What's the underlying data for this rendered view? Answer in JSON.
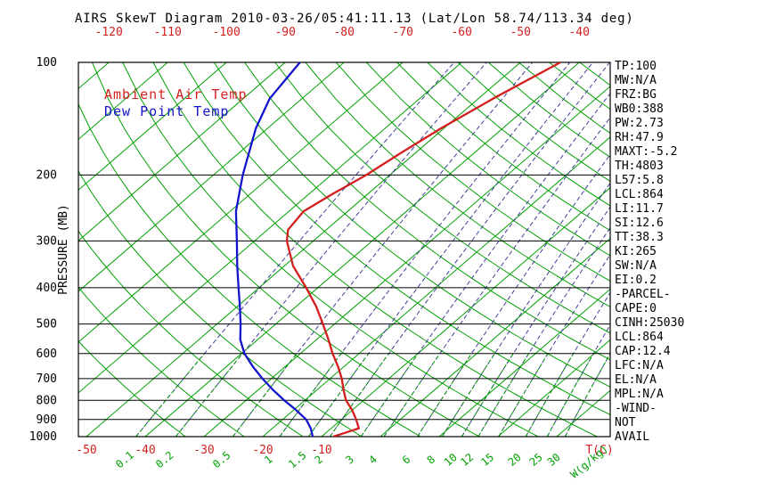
{
  "title": "AIRS SkewT Diagram 2010-03-26/05:41:11.13 (Lat/Lon 58.74/113.34 deg)",
  "legend": {
    "temperature_label": "Ambient Air Temp",
    "dewpoint_label": "Dew Point Temp"
  },
  "axes": {
    "pressure_axis_title": "PRESSURE (MB)",
    "pressure_ticks": [
      100,
      200,
      300,
      400,
      500,
      600,
      700,
      800,
      900,
      1000
    ],
    "top_temp_ticks": [
      -120,
      -110,
      -100,
      -90,
      -80,
      -70,
      -60,
      -50,
      -40
    ],
    "bottom_temp_ticks": [
      -50,
      -40,
      -30,
      -20,
      -10
    ],
    "temp_unit_label": "T(C)",
    "mixing_ratio_ticks": [
      0.1,
      0.2,
      0.5,
      1,
      1.5,
      2,
      3,
      4,
      6,
      8,
      10,
      12,
      15,
      20,
      25,
      30
    ],
    "mixing_ratio_unit_label": "W(g/kg)"
  },
  "stats": [
    "TP:100",
    "MW:N/A",
    "FRZ:BG",
    "WB0:388",
    "PW:2.73",
    "RH:47.9",
    "MAXT:-5.2",
    "TH:4803",
    "L57:5.8",
    "LCL:864",
    "LI:11.7",
    "SI:12.6",
    "TT:38.3",
    "KI:265",
    "SW:N/A",
    "EI:0.2",
    "-PARCEL-",
    "CAPE:0",
    "CINH:25030",
    "LCL:864",
    "CAP:12.4",
    "LFC:N/A",
    "EL:N/A",
    "MPL:N/A",
    "-WIND-",
    "NOT",
    "AVAIL"
  ],
  "colors": {
    "grid_green": "#00a000",
    "grid_navy": "#404098",
    "temp_red": "#d41f1f",
    "dewpoint_blue": "#1414cc",
    "axis_black": "#000000"
  },
  "chart_data": {
    "type": "line",
    "title": "AIRS SkewT Diagram 2010-03-26/05:41:11.13 (Lat/Lon 58.74/113.34 deg)",
    "xlabel": "T(C)",
    "ylabel": "PRESSURE (MB)",
    "x_range": [
      -120,
      40
    ],
    "y_range": [
      100,
      1000
    ],
    "y_scale": "log",
    "projection": "skew-t-log-p",
    "grid": "isotherms, dry adiabats, mixing-ratio lines",
    "legend_position": "top-left-inside",
    "series": [
      {
        "name": "Ambient Air Temp",
        "color": "#d41f1f",
        "pressure": [
          1000,
          950,
          900,
          850,
          800,
          750,
          700,
          650,
          600,
          550,
          500,
          450,
          400,
          350,
          300,
          280,
          250,
          225,
          200,
          175,
          150,
          125,
          100
        ],
        "temp_c": [
          -8,
          -5.3,
          -7.5,
          -10,
          -13,
          -15.5,
          -18,
          -21,
          -24.5,
          -28,
          -32,
          -36.5,
          -42,
          -48.5,
          -54.5,
          -56.5,
          -57.5,
          -56,
          -54,
          -52.5,
          -50.5,
          -47.5,
          -43.2
        ]
      },
      {
        "name": "Dew Point Temp",
        "color": "#1414cc",
        "pressure": [
          1000,
          950,
          900,
          850,
          800,
          750,
          700,
          650,
          600,
          550,
          500,
          450,
          400,
          350,
          300,
          250,
          200,
          150,
          125,
          100
        ],
        "temp_c": [
          -11.5,
          -13.5,
          -16,
          -19.5,
          -23.5,
          -27.5,
          -31.5,
          -35.5,
          -39.5,
          -43,
          -46,
          -49.5,
          -53.5,
          -58,
          -63,
          -69,
          -75,
          -82,
          -85.5,
          -87.5
        ]
      }
    ]
  }
}
